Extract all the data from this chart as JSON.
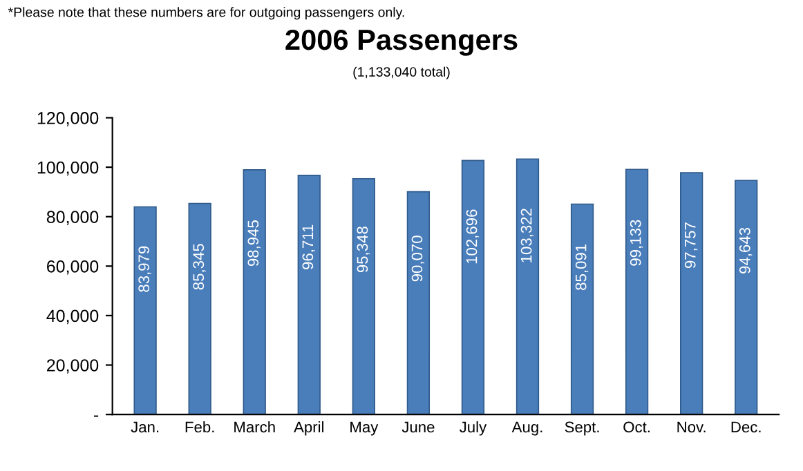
{
  "chart_data": {
    "type": "bar",
    "title": "2006 Passengers",
    "subtitle": "(1,133,040 total)",
    "annotations": [
      "*Please note that these numbers are for outgoing passengers only."
    ],
    "categories": [
      "Jan.",
      "Feb.",
      "March",
      "April",
      "May",
      "June",
      "July",
      "Aug.",
      "Sept.",
      "Oct.",
      "Nov.",
      "Dec."
    ],
    "values": [
      83979,
      85345,
      98945,
      96711,
      95348,
      90070,
      102696,
      103322,
      85091,
      99133,
      97757,
      94643
    ],
    "value_labels": [
      "83,979",
      "85,345",
      "98,945",
      "96,711",
      "95,348",
      "90,070",
      "102,696",
      "103,322",
      "85,091",
      "99,133",
      "97,757",
      "94,643"
    ],
    "color": "#4a7ebb",
    "ylim": [
      0,
      120000
    ],
    "yticks": [
      {
        "value": 0,
        "label": "-"
      },
      {
        "value": 20000,
        "label": "20,000"
      },
      {
        "value": 40000,
        "label": "40,000"
      },
      {
        "value": 60000,
        "label": "60,000"
      },
      {
        "value": 80000,
        "label": "80,000"
      },
      {
        "value": 100000,
        "label": "100,000"
      },
      {
        "value": 120000,
        "label": "120,000"
      }
    ],
    "grid": false,
    "legend": false
  }
}
